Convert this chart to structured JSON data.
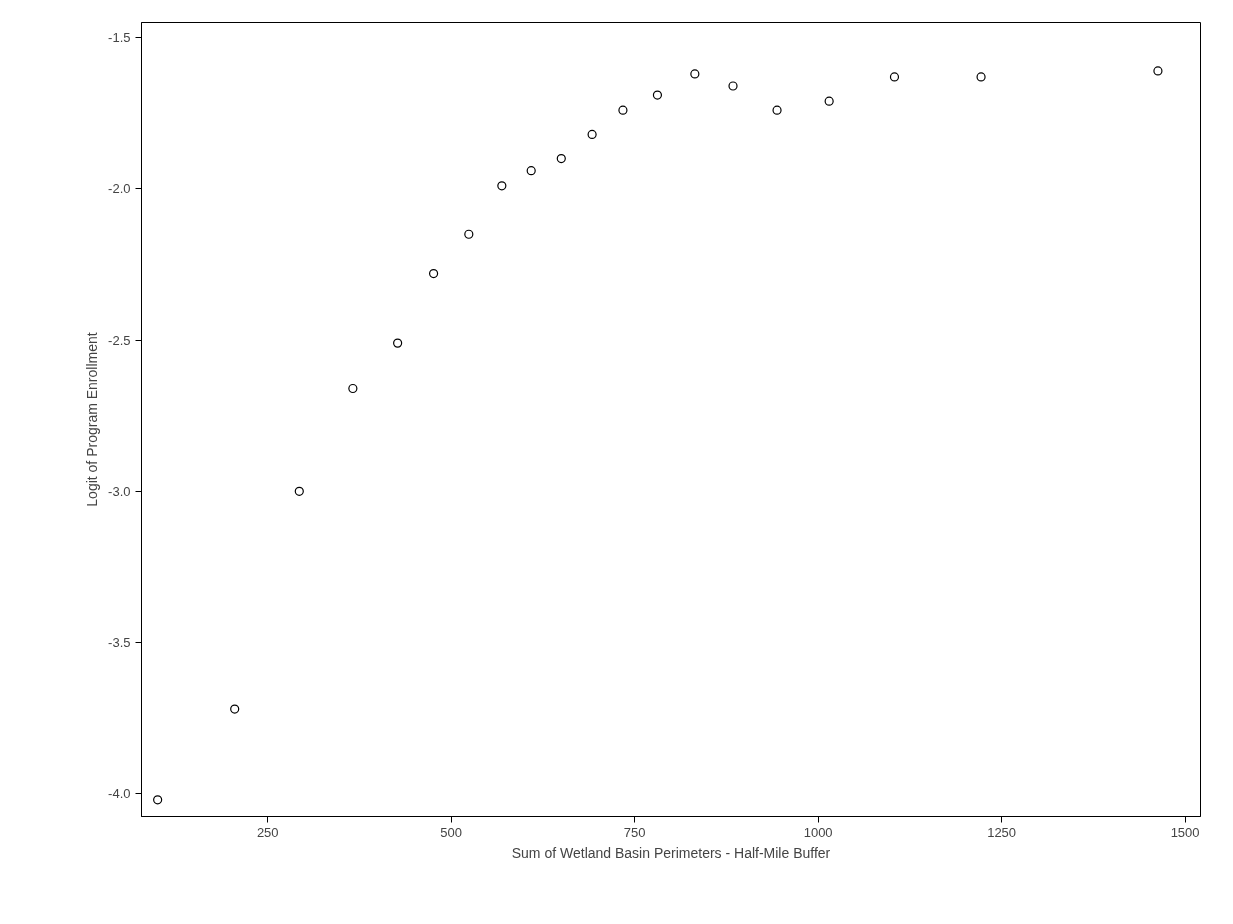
{
  "chart_data": {
    "type": "scatter",
    "xlabel": "Sum of Wetland Basin Perimeters - Half-Mile Buffer",
    "ylabel": "Logit of Program Enrollment",
    "x": [
      100,
      205,
      293,
      366,
      427,
      476,
      524,
      569,
      609,
      650,
      692,
      734,
      781,
      832,
      884,
      944,
      1015,
      1104,
      1222,
      1463
    ],
    "series": [
      {
        "color": "#000000",
        "values": [
          -4.02,
          -3.72,
          -3.0,
          -2.66,
          -2.51,
          -2.28,
          -2.15,
          -1.99,
          -1.94,
          -1.9,
          -1.82,
          -1.74,
          -1.69,
          -1.62,
          -1.66,
          -1.74,
          -1.71,
          -1.63,
          -1.63,
          -1.61
        ]
      }
    ],
    "xlim": [
      78,
      1521
    ],
    "ylim": [
      -4.075,
      -1.45
    ],
    "xticks": [
      250,
      500,
      750,
      1000,
      1250,
      1500
    ],
    "yticks": [
      {
        "value": -4,
        "label": "-4.0"
      },
      -3.5,
      {
        "value": -3,
        "label": "-3.0"
      },
      -2.5,
      {
        "value": -2,
        "label": "-2.0"
      },
      -1.5
    ],
    "grid": false,
    "marker": "circle"
  }
}
